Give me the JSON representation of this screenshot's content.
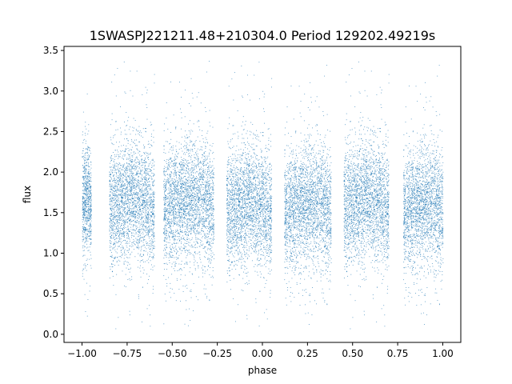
{
  "chart_data": {
    "type": "scatter",
    "title": "1SWASPJ221211.48+210304.0 Period 129202.49219s",
    "xlabel": "phase",
    "ylabel": "flux",
    "xlim": [
      -1.1,
      1.1
    ],
    "ylim": [
      -0.1,
      3.55
    ],
    "x_ticks": [
      -1.0,
      -0.75,
      -0.5,
      -0.25,
      0.0,
      0.25,
      0.5,
      0.75,
      1.0
    ],
    "x_tick_labels": [
      "−1.00",
      "−0.75",
      "−0.50",
      "−0.25",
      "0.00",
      "0.25",
      "0.50",
      "0.75",
      "1.00"
    ],
    "y_ticks": [
      0.0,
      0.5,
      1.0,
      1.5,
      2.0,
      2.5,
      3.0,
      3.5
    ],
    "y_tick_labels": [
      "0.0",
      "0.5",
      "1.0",
      "1.5",
      "2.0",
      "2.5",
      "3.0",
      "3.5"
    ],
    "grid": false,
    "marker_color": "#1f77b4",
    "series": [
      {
        "phase_clusters": [
          {
            "x_range": [
              -1.0,
              -0.95
            ],
            "y_median": 1.55,
            "y_core": [
              1.0,
              2.3
            ],
            "y_extent": [
              0.2,
              3.3
            ]
          },
          {
            "x_range": [
              -0.85,
              -0.6
            ],
            "y_median": 1.55,
            "y_core": [
              0.9,
              2.4
            ],
            "y_extent": [
              0.05,
              3.4
            ]
          },
          {
            "x_range": [
              -0.55,
              -0.27
            ],
            "y_median": 1.55,
            "y_core": [
              0.9,
              2.4
            ],
            "y_extent": [
              0.05,
              3.4
            ]
          },
          {
            "x_range": [
              -0.2,
              0.05
            ],
            "y_median": 1.5,
            "y_core": [
              0.9,
              2.4
            ],
            "y_extent": [
              0.1,
              3.4
            ]
          },
          {
            "x_range": [
              0.12,
              0.38
            ],
            "y_median": 1.5,
            "y_core": [
              0.9,
              2.4
            ],
            "y_extent": [
              0.1,
              3.4
            ]
          },
          {
            "x_range": [
              0.45,
              0.7
            ],
            "y_median": 1.55,
            "y_core": [
              0.9,
              2.4
            ],
            "y_extent": [
              0.05,
              3.4
            ]
          },
          {
            "x_range": [
              0.78,
              1.0
            ],
            "y_median": 1.5,
            "y_core": [
              0.9,
              2.4
            ],
            "y_extent": [
              0.1,
              3.4
            ]
          }
        ]
      }
    ]
  }
}
